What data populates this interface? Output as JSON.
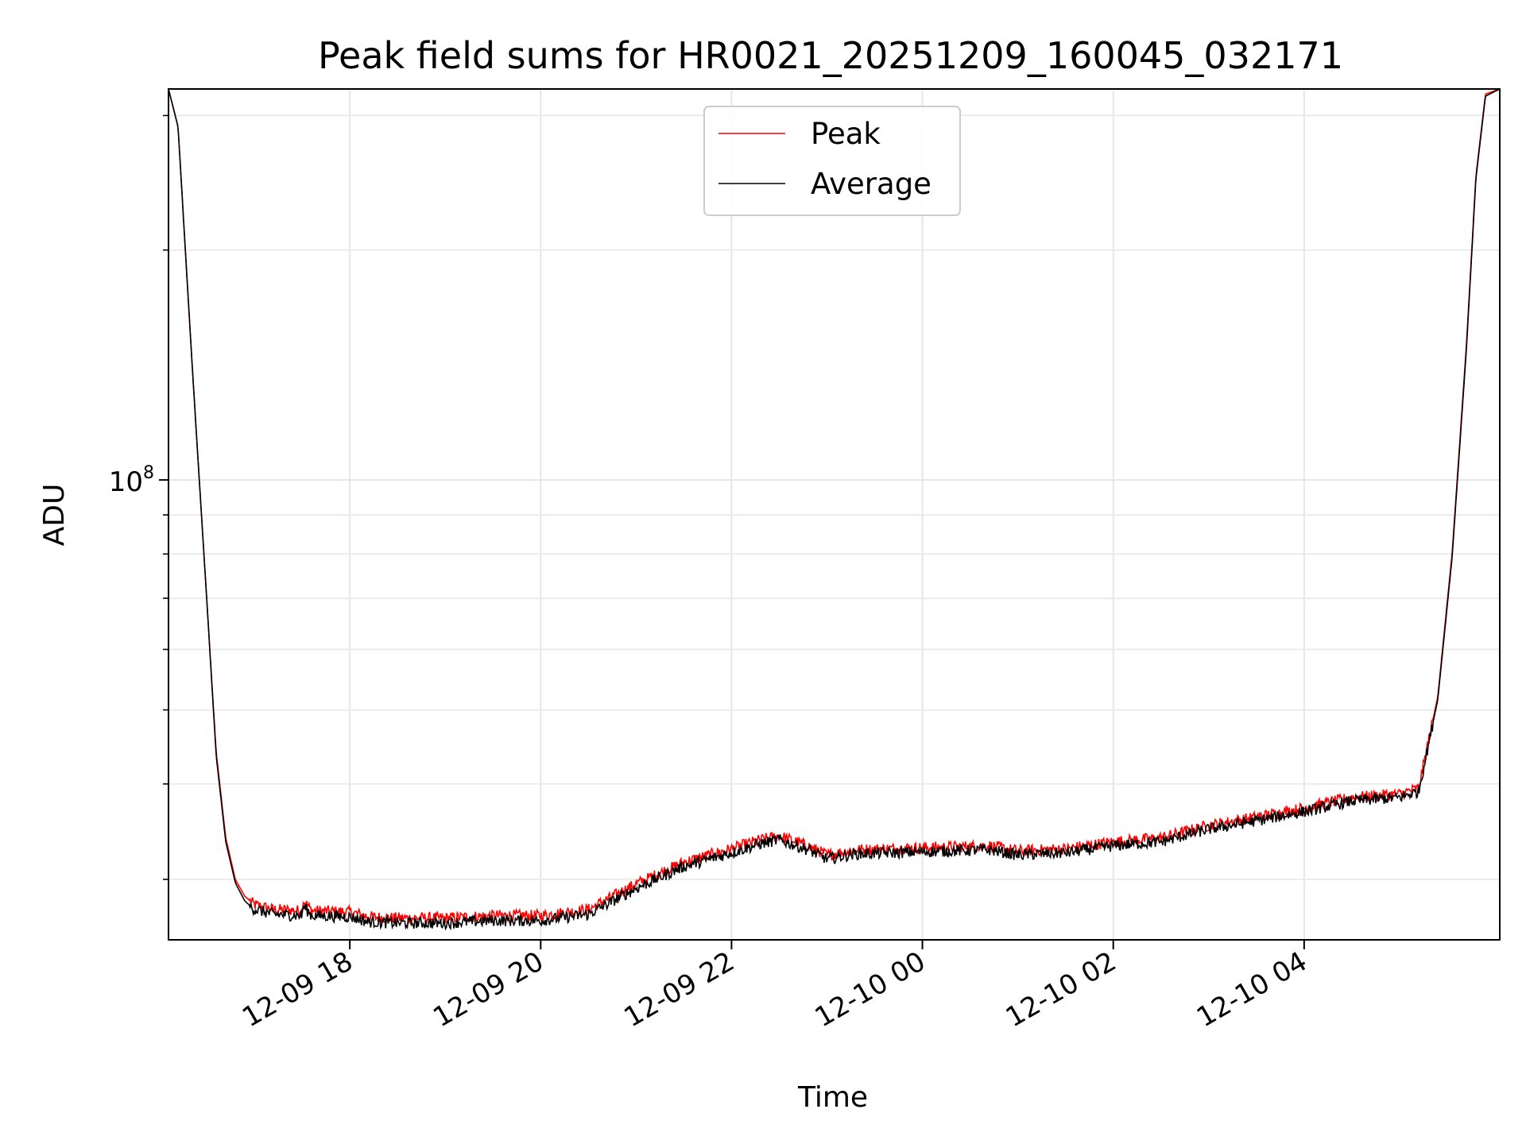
{
  "chart_data": {
    "type": "line",
    "title": "Peak field sums for HR0021_20251209_160045_032171",
    "xlabel": "Time",
    "ylabel": "ADU",
    "yscale": "log",
    "xlim": [
      16.1,
      30.05
    ],
    "ylim": [
      25000000,
      325000000
    ],
    "x_units": "hours since 2025-12-09 00:00",
    "x_ticks": [
      {
        "value": 18,
        "label": "12-09 18"
      },
      {
        "value": 20,
        "label": "12-09 20"
      },
      {
        "value": 22,
        "label": "12-09 22"
      },
      {
        "value": 24,
        "label": "12-10 00"
      },
      {
        "value": 26,
        "label": "12-10 02"
      },
      {
        "value": 28,
        "label": "12-10 04"
      }
    ],
    "y_major_ticks": [
      {
        "value": 100000000,
        "base": "10",
        "exponent": "8"
      }
    ],
    "y_minor_ticks": [
      30000000,
      40000000,
      50000000,
      60000000,
      70000000,
      80000000,
      90000000,
      200000000,
      300000000
    ],
    "grid": true,
    "legend_position": "upper-center",
    "series": [
      {
        "name": "Peak",
        "color": "#ff0000",
        "x": [
          16.1,
          16.2,
          16.35,
          16.5,
          16.6,
          16.7,
          16.8,
          16.9,
          17.0,
          17.2,
          17.5,
          17.51,
          17.6,
          18.0,
          18.2,
          18.5,
          19.0,
          19.5,
          20.0,
          20.5,
          21.0,
          21.5,
          22.0,
          22.3,
          22.5,
          22.8,
          23.0,
          23.3,
          24.0,
          24.7,
          25.0,
          25.5,
          26.0,
          26.5,
          27.0,
          27.5,
          28.0,
          28.5,
          29.0,
          29.2,
          29.4,
          29.55,
          29.7,
          29.8,
          29.9,
          30.05
        ],
        "values": [
          325000000,
          290000000,
          140000000,
          70000000,
          44000000,
          34000000,
          30000000,
          28500000,
          27800000,
          27400000,
          27300000,
          28200000,
          27300000,
          27200000,
          26800000,
          26700000,
          26700000,
          26900000,
          26900000,
          27400000,
          29600000,
          31600000,
          32900000,
          33800000,
          34200000,
          33200000,
          32300000,
          32800000,
          33000000,
          33200000,
          32700000,
          32900000,
          33600000,
          34000000,
          35300000,
          36200000,
          37200000,
          38400000,
          38800000,
          39500000,
          52000000,
          80000000,
          150000000,
          250000000,
          320000000,
          325000000
        ]
      },
      {
        "name": "Average",
        "color": "#000000",
        "x": [
          16.1,
          16.2,
          16.35,
          16.5,
          16.6,
          16.7,
          16.8,
          16.9,
          17.0,
          17.2,
          17.5,
          17.51,
          17.6,
          18.0,
          18.2,
          18.5,
          19.0,
          19.5,
          20.0,
          20.5,
          21.0,
          21.5,
          22.0,
          22.3,
          22.5,
          22.8,
          23.0,
          23.3,
          24.0,
          24.7,
          25.0,
          25.5,
          26.0,
          26.5,
          27.0,
          27.5,
          28.0,
          28.5,
          29.0,
          29.2,
          29.4,
          29.55,
          29.7,
          29.8,
          29.9,
          30.05
        ],
        "values": [
          325000000,
          290000000,
          140000000,
          70000000,
          43500000,
          33600000,
          29700000,
          28100000,
          27400000,
          27000000,
          26900000,
          27700000,
          26900000,
          26800000,
          26400000,
          26300000,
          26300000,
          26500000,
          26500000,
          27000000,
          29200000,
          31200000,
          32500000,
          33400000,
          33800000,
          32800000,
          31900000,
          32400000,
          32600000,
          32800000,
          32300000,
          32500000,
          33200000,
          33600000,
          34900000,
          35800000,
          36800000,
          38000000,
          38400000,
          39100000,
          51500000,
          79000000,
          148000000,
          248000000,
          318000000,
          325000000
        ]
      }
    ]
  }
}
